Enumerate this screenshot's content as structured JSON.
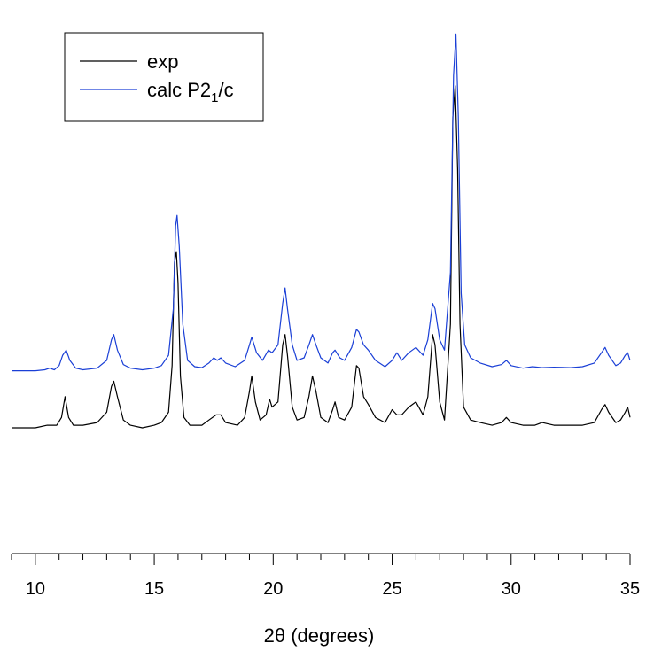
{
  "chart_data": {
    "type": "line",
    "xlabel": "2θ (degrees)",
    "ylabel": "",
    "xlim": [
      9,
      35
    ],
    "x_ticks": [
      10,
      15,
      20,
      25,
      30,
      35
    ],
    "x_tick_labels": [
      "10",
      "15",
      "20",
      "25",
      "30",
      "35"
    ],
    "y_axis_shown": false,
    "grid": false,
    "legend_position": "top-left",
    "series": [
      {
        "name": "exp",
        "name_parts": {
          "text": "exp",
          "subscript": "",
          "suffix": ""
        },
        "color": "#000000",
        "baseline": 0.2,
        "points": [
          [
            9.0,
            0.2
          ],
          [
            10.0,
            0.2
          ],
          [
            10.5,
            0.205
          ],
          [
            10.9,
            0.205
          ],
          [
            11.1,
            0.22
          ],
          [
            11.25,
            0.26
          ],
          [
            11.4,
            0.22
          ],
          [
            11.6,
            0.205
          ],
          [
            12.0,
            0.205
          ],
          [
            12.6,
            0.21
          ],
          [
            13.0,
            0.23
          ],
          [
            13.2,
            0.28
          ],
          [
            13.3,
            0.29
          ],
          [
            13.45,
            0.26
          ],
          [
            13.7,
            0.215
          ],
          [
            14.0,
            0.205
          ],
          [
            14.5,
            0.2
          ],
          [
            15.0,
            0.205
          ],
          [
            15.3,
            0.21
          ],
          [
            15.6,
            0.23
          ],
          [
            15.75,
            0.32
          ],
          [
            15.85,
            0.52
          ],
          [
            15.93,
            0.54
          ],
          [
            16.0,
            0.48
          ],
          [
            16.1,
            0.3
          ],
          [
            16.25,
            0.22
          ],
          [
            16.5,
            0.205
          ],
          [
            17.0,
            0.205
          ],
          [
            17.3,
            0.215
          ],
          [
            17.6,
            0.225
          ],
          [
            17.8,
            0.225
          ],
          [
            18.0,
            0.21
          ],
          [
            18.5,
            0.205
          ],
          [
            18.8,
            0.22
          ],
          [
            19.0,
            0.27
          ],
          [
            19.1,
            0.3
          ],
          [
            19.25,
            0.25
          ],
          [
            19.45,
            0.215
          ],
          [
            19.7,
            0.225
          ],
          [
            19.85,
            0.255
          ],
          [
            19.95,
            0.24
          ],
          [
            20.2,
            0.25
          ],
          [
            20.4,
            0.36
          ],
          [
            20.5,
            0.38
          ],
          [
            20.6,
            0.34
          ],
          [
            20.8,
            0.24
          ],
          [
            21.0,
            0.215
          ],
          [
            21.3,
            0.22
          ],
          [
            21.5,
            0.26
          ],
          [
            21.65,
            0.3
          ],
          [
            21.8,
            0.27
          ],
          [
            22.0,
            0.22
          ],
          [
            22.3,
            0.21
          ],
          [
            22.5,
            0.235
          ],
          [
            22.6,
            0.25
          ],
          [
            22.75,
            0.22
          ],
          [
            23.0,
            0.215
          ],
          [
            23.3,
            0.24
          ],
          [
            23.5,
            0.32
          ],
          [
            23.6,
            0.315
          ],
          [
            23.8,
            0.26
          ],
          [
            24.0,
            0.245
          ],
          [
            24.3,
            0.22
          ],
          [
            24.7,
            0.21
          ],
          [
            25.0,
            0.235
          ],
          [
            25.2,
            0.225
          ],
          [
            25.4,
            0.225
          ],
          [
            25.7,
            0.24
          ],
          [
            26.0,
            0.25
          ],
          [
            26.3,
            0.225
          ],
          [
            26.5,
            0.26
          ],
          [
            26.7,
            0.38
          ],
          [
            26.8,
            0.36
          ],
          [
            27.0,
            0.25
          ],
          [
            27.2,
            0.215
          ],
          [
            27.45,
            0.4
          ],
          [
            27.55,
            0.8
          ],
          [
            27.65,
            0.86
          ],
          [
            27.75,
            0.7
          ],
          [
            27.85,
            0.4
          ],
          [
            28.0,
            0.24
          ],
          [
            28.3,
            0.215
          ],
          [
            28.7,
            0.21
          ],
          [
            29.2,
            0.205
          ],
          [
            29.6,
            0.21
          ],
          [
            29.8,
            0.22
          ],
          [
            30.0,
            0.21
          ],
          [
            30.5,
            0.205
          ],
          [
            31.0,
            0.205
          ],
          [
            31.3,
            0.21
          ],
          [
            31.8,
            0.205
          ],
          [
            32.5,
            0.205
          ],
          [
            33.0,
            0.205
          ],
          [
            33.5,
            0.21
          ],
          [
            33.8,
            0.235
          ],
          [
            33.95,
            0.245
          ],
          [
            34.1,
            0.23
          ],
          [
            34.4,
            0.21
          ],
          [
            34.6,
            0.215
          ],
          [
            34.8,
            0.23
          ],
          [
            34.9,
            0.24
          ],
          [
            35.0,
            0.22
          ]
        ]
      },
      {
        "name": "calc P21/c",
        "name_parts": {
          "text": "calc P2",
          "subscript": "1",
          "suffix": "/c"
        },
        "color": "#1a3fd6",
        "baseline": 0.31,
        "points": [
          [
            9.0,
            0.31
          ],
          [
            10.0,
            0.31
          ],
          [
            10.4,
            0.312
          ],
          [
            10.6,
            0.315
          ],
          [
            10.8,
            0.312
          ],
          [
            11.0,
            0.32
          ],
          [
            11.15,
            0.34
          ],
          [
            11.3,
            0.35
          ],
          [
            11.45,
            0.33
          ],
          [
            11.7,
            0.315
          ],
          [
            12.0,
            0.312
          ],
          [
            12.6,
            0.315
          ],
          [
            13.0,
            0.33
          ],
          [
            13.2,
            0.37
          ],
          [
            13.3,
            0.38
          ],
          [
            13.45,
            0.35
          ],
          [
            13.7,
            0.322
          ],
          [
            14.0,
            0.315
          ],
          [
            14.5,
            0.312
          ],
          [
            15.0,
            0.315
          ],
          [
            15.3,
            0.32
          ],
          [
            15.6,
            0.34
          ],
          [
            15.8,
            0.43
          ],
          [
            15.9,
            0.59
          ],
          [
            15.96,
            0.61
          ],
          [
            16.05,
            0.55
          ],
          [
            16.2,
            0.4
          ],
          [
            16.4,
            0.33
          ],
          [
            16.7,
            0.318
          ],
          [
            17.0,
            0.316
          ],
          [
            17.3,
            0.325
          ],
          [
            17.5,
            0.335
          ],
          [
            17.65,
            0.33
          ],
          [
            17.8,
            0.335
          ],
          [
            18.0,
            0.325
          ],
          [
            18.4,
            0.318
          ],
          [
            18.8,
            0.33
          ],
          [
            19.0,
            0.36
          ],
          [
            19.1,
            0.375
          ],
          [
            19.3,
            0.345
          ],
          [
            19.55,
            0.33
          ],
          [
            19.8,
            0.35
          ],
          [
            19.95,
            0.345
          ],
          [
            20.2,
            0.36
          ],
          [
            20.4,
            0.44
          ],
          [
            20.5,
            0.47
          ],
          [
            20.6,
            0.43
          ],
          [
            20.8,
            0.36
          ],
          [
            21.0,
            0.33
          ],
          [
            21.3,
            0.335
          ],
          [
            21.5,
            0.36
          ],
          [
            21.65,
            0.38
          ],
          [
            21.8,
            0.36
          ],
          [
            22.0,
            0.335
          ],
          [
            22.3,
            0.325
          ],
          [
            22.5,
            0.345
          ],
          [
            22.6,
            0.35
          ],
          [
            22.8,
            0.335
          ],
          [
            23.0,
            0.33
          ],
          [
            23.3,
            0.355
          ],
          [
            23.5,
            0.39
          ],
          [
            23.6,
            0.385
          ],
          [
            23.8,
            0.36
          ],
          [
            24.0,
            0.35
          ],
          [
            24.3,
            0.33
          ],
          [
            24.7,
            0.318
          ],
          [
            25.0,
            0.33
          ],
          [
            25.2,
            0.345
          ],
          [
            25.4,
            0.33
          ],
          [
            25.7,
            0.345
          ],
          [
            26.0,
            0.355
          ],
          [
            26.3,
            0.34
          ],
          [
            26.5,
            0.37
          ],
          [
            26.7,
            0.44
          ],
          [
            26.8,
            0.43
          ],
          [
            27.0,
            0.37
          ],
          [
            27.2,
            0.35
          ],
          [
            27.45,
            0.5
          ],
          [
            27.58,
            0.88
          ],
          [
            27.68,
            0.96
          ],
          [
            27.78,
            0.8
          ],
          [
            27.9,
            0.46
          ],
          [
            28.05,
            0.36
          ],
          [
            28.3,
            0.335
          ],
          [
            28.7,
            0.325
          ],
          [
            29.2,
            0.318
          ],
          [
            29.6,
            0.322
          ],
          [
            29.8,
            0.33
          ],
          [
            30.0,
            0.32
          ],
          [
            30.5,
            0.315
          ],
          [
            30.9,
            0.318
          ],
          [
            31.3,
            0.316
          ],
          [
            31.8,
            0.317
          ],
          [
            32.5,
            0.316
          ],
          [
            33.0,
            0.318
          ],
          [
            33.5,
            0.325
          ],
          [
            33.8,
            0.345
          ],
          [
            33.95,
            0.355
          ],
          [
            34.1,
            0.34
          ],
          [
            34.4,
            0.32
          ],
          [
            34.6,
            0.325
          ],
          [
            34.8,
            0.34
          ],
          [
            34.9,
            0.345
          ],
          [
            35.0,
            0.33
          ]
        ]
      }
    ]
  }
}
